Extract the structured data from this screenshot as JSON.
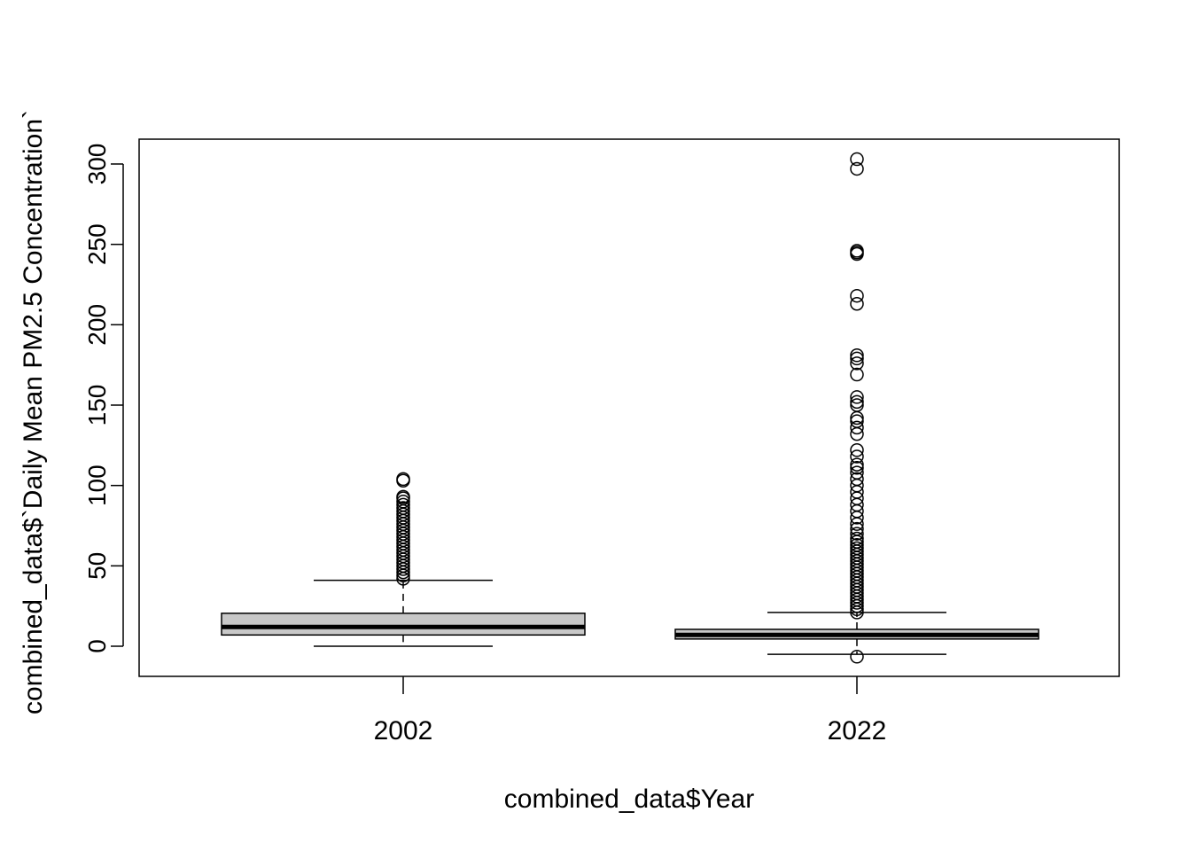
{
  "chart_data": {
    "type": "box",
    "xlabel": "combined_data$Year",
    "ylabel": "combined_data$`Daily Mean PM2.5 Concentration`",
    "ylim": [
      -19,
      315
    ],
    "yticks": [
      0,
      50,
      100,
      150,
      200,
      250,
      300
    ],
    "ytick_labels": [
      "0",
      "50",
      "100",
      "150",
      "200",
      "250",
      "300"
    ],
    "grid": false,
    "box_color": "#c8c8c8",
    "categories": [
      "2002",
      "2022"
    ],
    "boxes": [
      {
        "name": "2002",
        "whisker_low": 0,
        "q1": 7,
        "median": 12,
        "q3": 20.5,
        "whisker_high": 41,
        "outliers": [
          42,
          44,
          46,
          48,
          50,
          52,
          54,
          56,
          58,
          60,
          62,
          64,
          66,
          68,
          70,
          72,
          74,
          76,
          78,
          80,
          82,
          84,
          86,
          88,
          90,
          92,
          93,
          103,
          104
        ]
      },
      {
        "name": "2022",
        "whisker_low": -5,
        "q1": 4.5,
        "median": 7,
        "q3": 10.5,
        "whisker_high": 21,
        "outliers": [
          -6.5,
          21,
          23,
          25,
          27,
          29,
          31,
          33,
          35,
          37,
          39,
          41,
          43,
          45,
          47,
          49,
          51,
          53,
          55,
          57,
          59,
          61,
          63,
          65,
          67,
          70,
          73,
          76,
          80,
          84,
          88,
          92,
          96,
          100,
          104,
          108,
          111,
          113,
          118,
          122,
          132,
          136,
          140,
          142,
          150,
          152,
          155,
          169,
          176,
          179,
          181,
          213,
          218,
          244,
          245,
          246,
          297,
          303
        ]
      }
    ]
  }
}
